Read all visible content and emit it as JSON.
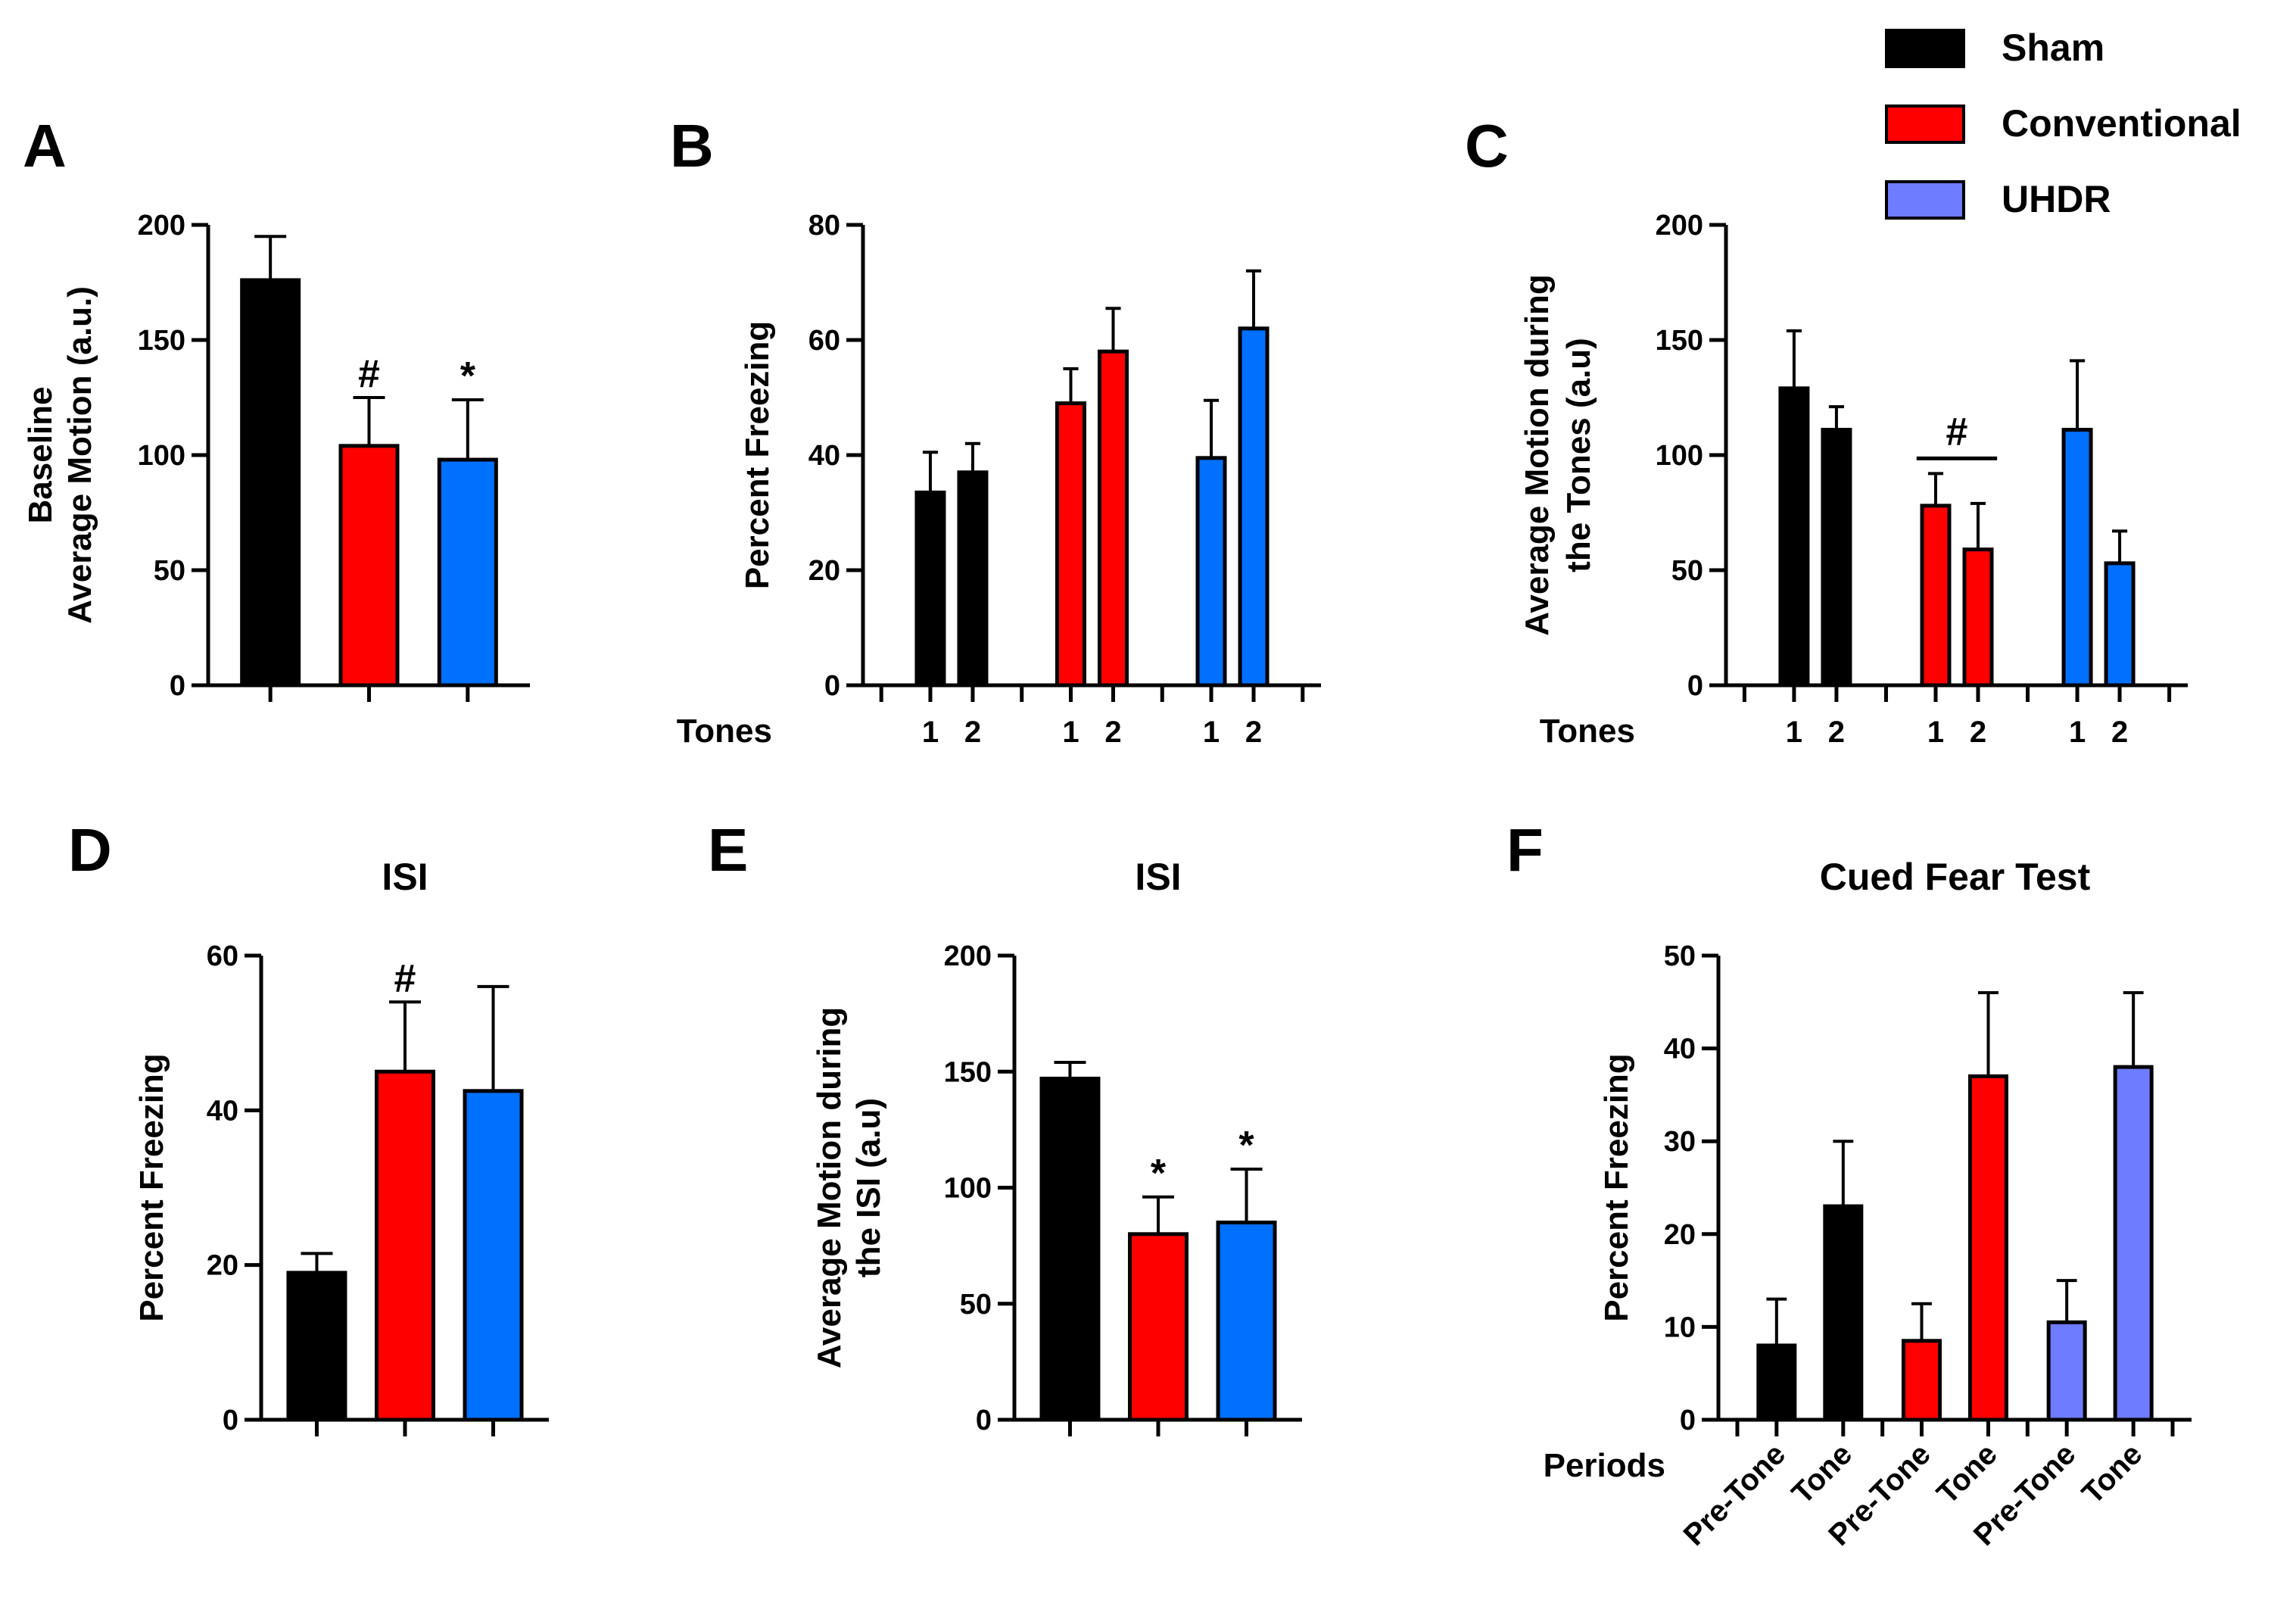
{
  "colors": {
    "sham": "#000000",
    "conventional": "#ff0000",
    "uhdr_blue": "#0070ff",
    "uhdr_periwinkle": "#6e7cff",
    "axis": "#000000"
  },
  "legend": [
    {
      "label": "Sham",
      "color": "#000000"
    },
    {
      "label": "Conventional",
      "color": "#ff0000"
    },
    {
      "label": "UHDR",
      "color": "#6e7cff"
    }
  ],
  "chart_data": [
    {
      "id": "A",
      "panel_label": "A",
      "type": "bar",
      "title": "",
      "ylabel": [
        "Baseline",
        "Average Motion (a.u.)"
      ],
      "ylim": [
        0,
        200
      ],
      "yticks": [
        0,
        50,
        100,
        150,
        200
      ],
      "xlabel": "",
      "groups": [
        {
          "bars": [
            {
              "label": "",
              "value": 176,
              "err": 19,
              "color": "#000000"
            }
          ]
        },
        {
          "bars": [
            {
              "label": "",
              "value": 104,
              "err": 21,
              "color": "#ff0000",
              "sig": "#"
            }
          ]
        },
        {
          "bars": [
            {
              "label": "",
              "value": 98,
              "err": 26,
              "color": "#0070ff",
              "sig": "*"
            }
          ]
        }
      ]
    },
    {
      "id": "B",
      "panel_label": "B",
      "type": "bar",
      "title": "",
      "ylabel": [
        "Percent Freezing"
      ],
      "ylim": [
        0,
        80
      ],
      "yticks": [
        0,
        20,
        40,
        60,
        80
      ],
      "xlabel": "Tones",
      "groups": [
        {
          "bars": [
            {
              "label": "1",
              "value": 33.5,
              "err": 7,
              "color": "#000000"
            },
            {
              "label": "2",
              "value": 37,
              "err": 5,
              "color": "#000000"
            }
          ]
        },
        {
          "bars": [
            {
              "label": "1",
              "value": 49,
              "err": 6,
              "color": "#ff0000"
            },
            {
              "label": "2",
              "value": 58,
              "err": 7.5,
              "color": "#ff0000"
            }
          ]
        },
        {
          "bars": [
            {
              "label": "1",
              "value": 39.5,
              "err": 10,
              "color": "#0070ff"
            },
            {
              "label": "2",
              "value": 62,
              "err": 10,
              "color": "#0070ff"
            }
          ]
        }
      ]
    },
    {
      "id": "C",
      "panel_label": "C",
      "type": "bar",
      "title": "",
      "ylabel": [
        "Average Motion during",
        "the Tones (a.u)"
      ],
      "ylim": [
        0,
        200
      ],
      "yticks": [
        0,
        50,
        100,
        150,
        200
      ],
      "xlabel": "Tones",
      "group_sig": {
        "group": 1,
        "text": "#"
      },
      "groups": [
        {
          "bars": [
            {
              "label": "1",
              "value": 129,
              "err": 25,
              "color": "#000000"
            },
            {
              "label": "2",
              "value": 111,
              "err": 10,
              "color": "#000000"
            }
          ]
        },
        {
          "bars": [
            {
              "label": "1",
              "value": 78,
              "err": 14,
              "color": "#ff0000"
            },
            {
              "label": "2",
              "value": 59,
              "err": 20,
              "color": "#ff0000"
            }
          ]
        },
        {
          "bars": [
            {
              "label": "1",
              "value": 111,
              "err": 30,
              "color": "#0070ff"
            },
            {
              "label": "2",
              "value": 53,
              "err": 14,
              "color": "#0070ff"
            }
          ]
        }
      ]
    },
    {
      "id": "D",
      "panel_label": "D",
      "type": "bar",
      "title": "ISI",
      "ylabel": [
        "Percent Freezing"
      ],
      "ylim": [
        0,
        60
      ],
      "yticks": [
        0,
        20,
        40,
        60
      ],
      "xlabel": "",
      "groups": [
        {
          "bars": [
            {
              "label": "",
              "value": 19,
              "err": 2.5,
              "color": "#000000"
            }
          ]
        },
        {
          "bars": [
            {
              "label": "",
              "value": 45,
              "err": 9,
              "color": "#ff0000",
              "sig": "#"
            }
          ]
        },
        {
          "bars": [
            {
              "label": "",
              "value": 42.5,
              "err": 13.5,
              "color": "#0070ff"
            }
          ]
        }
      ]
    },
    {
      "id": "E",
      "panel_label": "E",
      "type": "bar",
      "title": "ISI",
      "ylabel": [
        "Average Motion during",
        "the ISI (a.u)"
      ],
      "ylim": [
        0,
        200
      ],
      "yticks": [
        0,
        50,
        100,
        150,
        200
      ],
      "xlabel": "",
      "groups": [
        {
          "bars": [
            {
              "label": "",
              "value": 147,
              "err": 7,
              "color": "#000000"
            }
          ]
        },
        {
          "bars": [
            {
              "label": "",
              "value": 80,
              "err": 16,
              "color": "#ff0000",
              "sig": "*"
            }
          ]
        },
        {
          "bars": [
            {
              "label": "",
              "value": 85,
              "err": 23,
              "color": "#0070ff",
              "sig": "*"
            }
          ]
        }
      ]
    },
    {
      "id": "F",
      "panel_label": "F",
      "type": "bar",
      "title": "Cued Fear Test",
      "ylabel": [
        "Percent Freezing"
      ],
      "ylim": [
        0,
        50
      ],
      "yticks": [
        0,
        10,
        20,
        30,
        40,
        50
      ],
      "xlabel": "Periods",
      "groups": [
        {
          "bars": [
            {
              "label": "Pre-Tone",
              "value": 8,
              "err": 5,
              "color": "#000000"
            },
            {
              "label": "Tone",
              "value": 23,
              "err": 7,
              "color": "#000000"
            }
          ]
        },
        {
          "bars": [
            {
              "label": "Pre-Tone",
              "value": 8.5,
              "err": 4,
              "color": "#ff0000"
            },
            {
              "label": "Tone",
              "value": 37,
              "err": 9,
              "color": "#ff0000"
            }
          ]
        },
        {
          "bars": [
            {
              "label": "Pre-Tone",
              "value": 10.5,
              "err": 4.5,
              "color": "#6e7cff"
            },
            {
              "label": "Tone",
              "value": 38,
              "err": 8,
              "color": "#6e7cff"
            }
          ]
        }
      ]
    }
  ]
}
